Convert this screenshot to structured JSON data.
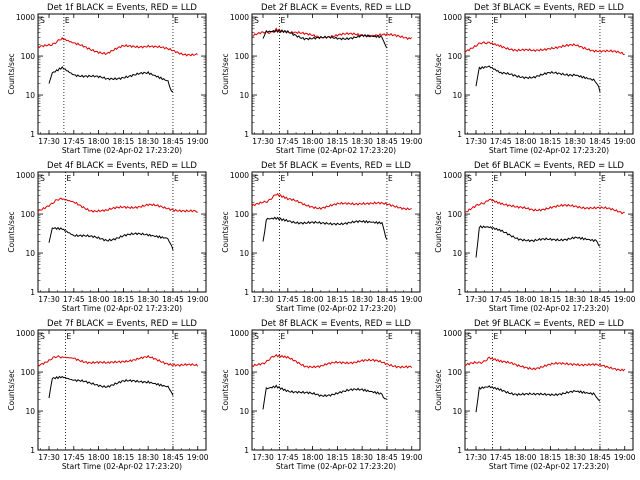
{
  "panels_layout": {
    "rows": 3,
    "cols": 3
  },
  "colors": {
    "events": "#000000",
    "lld": "#dd0000",
    "background": "#ffffff"
  },
  "chart_data": [
    {
      "type": "line",
      "title": "Det 1f BLACK = Events, RED = LLD",
      "xlabel": "Start Time (02-Apr-02 17:23:20)",
      "ylabel": "Counts/sec",
      "x_ticks": [
        "17:30",
        "17:45",
        "18:00",
        "18:15",
        "18:30",
        "18:45",
        "19:00"
      ],
      "y_ticks": [
        "1",
        "10",
        "100",
        "1000"
      ],
      "y_scale": "log",
      "markers": [
        {
          "label": "S",
          "time": "17:24"
        },
        {
          "label": "E",
          "time": "17:39"
        },
        {
          "label": "E",
          "time": "18:45"
        }
      ],
      "series": [
        {
          "color": "#dd0000",
          "x": [
            "17:23",
            "17:30",
            "17:38",
            "17:45",
            "17:55",
            "18:05",
            "18:15",
            "18:30",
            "18:40",
            "18:50",
            "19:00"
          ],
          "y": [
            160,
            200,
            260,
            200,
            150,
            120,
            170,
            190,
            150,
            120,
            110
          ]
        },
        {
          "color": "#000000",
          "x": [
            "17:30",
            "17:32",
            "17:38",
            "17:45",
            "17:55",
            "18:05",
            "18:15",
            "18:30",
            "18:42",
            "18:45"
          ],
          "y": [
            18,
            40,
            55,
            35,
            30,
            25,
            30,
            35,
            22,
            12
          ]
        }
      ]
    },
    {
      "type": "line",
      "title": "Det 2f BLACK = Events, RED = LLD",
      "xlabel": "Start Time (02-Apr-02 17:23:20)",
      "ylabel": "Counts/sec",
      "x_ticks": [
        "17:30",
        "17:45",
        "18:00",
        "18:15",
        "18:30",
        "18:45",
        "19:00"
      ],
      "y_ticks": [
        "1",
        "10",
        "100",
        "1000"
      ],
      "y_scale": "log",
      "markers": [
        {
          "label": "S",
          "time": "17:24"
        },
        {
          "label": "E",
          "time": "17:40"
        },
        {
          "label": "E",
          "time": "18:45"
        }
      ],
      "series": [
        {
          "color": "#dd0000",
          "x": [
            "17:23",
            "17:30",
            "17:38",
            "17:45",
            "17:55",
            "18:05",
            "18:15",
            "18:30",
            "18:40",
            "18:50",
            "19:00"
          ],
          "y": [
            320,
            380,
            480,
            430,
            350,
            320,
            340,
            360,
            350,
            320,
            300
          ]
        },
        {
          "color": "#000000",
          "x": [
            "17:30",
            "17:32",
            "17:38",
            "17:45",
            "17:55",
            "18:05",
            "18:15",
            "18:30",
            "18:42",
            "18:45"
          ],
          "y": [
            300,
            420,
            440,
            400,
            300,
            280,
            290,
            320,
            290,
            160
          ]
        }
      ]
    },
    {
      "type": "line",
      "title": "Det 3f BLACK = Events, RED = LLD",
      "xlabel": "Start Time (02-Apr-02 17:23:20)",
      "ylabel": "Counts/sec",
      "x_ticks": [
        "17:30",
        "17:45",
        "18:00",
        "18:15",
        "18:30",
        "18:45",
        "19:00"
      ],
      "y_ticks": [
        "1",
        "10",
        "100",
        "1000"
      ],
      "y_scale": "log",
      "markers": [
        {
          "label": "S",
          "time": "17:24"
        },
        {
          "label": "E",
          "time": "17:40"
        },
        {
          "label": "E",
          "time": "18:45"
        }
      ],
      "series": [
        {
          "color": "#dd0000",
          "x": [
            "17:23",
            "17:30",
            "17:38",
            "17:45",
            "17:55",
            "18:05",
            "18:15",
            "18:30",
            "18:40",
            "18:50",
            "19:00"
          ],
          "y": [
            140,
            180,
            240,
            190,
            140,
            130,
            170,
            180,
            150,
            130,
            110
          ]
        },
        {
          "color": "#000000",
          "x": [
            "17:30",
            "17:32",
            "17:38",
            "17:45",
            "17:55",
            "18:05",
            "18:15",
            "18:30",
            "18:42",
            "18:45"
          ],
          "y": [
            18,
            45,
            50,
            35,
            30,
            30,
            35,
            35,
            25,
            12
          ]
        }
      ]
    },
    {
      "type": "line",
      "title": "Det 4f BLACK = Events, RED = LLD",
      "xlabel": "Start Time (02-Apr-02 17:23:20)",
      "ylabel": "Counts/sec",
      "x_ticks": [
        "17:30",
        "17:45",
        "18:00",
        "18:15",
        "18:30",
        "18:45",
        "19:00"
      ],
      "y_ticks": [
        "1",
        "10",
        "100",
        "1000"
      ],
      "y_scale": "log",
      "markers": [
        {
          "label": "S",
          "time": "17:24"
        },
        {
          "label": "E",
          "time": "17:40"
        },
        {
          "label": "E",
          "time": "18:45"
        }
      ],
      "series": [
        {
          "color": "#dd0000",
          "x": [
            "17:23",
            "17:30",
            "17:38",
            "17:45",
            "17:55",
            "18:05",
            "18:15",
            "18:30",
            "18:40",
            "18:50",
            "19:00"
          ],
          "y": [
            120,
            180,
            240,
            190,
            130,
            120,
            150,
            170,
            140,
            130,
            110
          ]
        },
        {
          "color": "#000000",
          "x": [
            "17:30",
            "17:32",
            "17:38",
            "17:45",
            "17:55",
            "18:05",
            "18:15",
            "18:30",
            "18:42",
            "18:45"
          ],
          "y": [
            18,
            45,
            42,
            30,
            25,
            22,
            28,
            30,
            25,
            12
          ]
        }
      ]
    },
    {
      "type": "line",
      "title": "Det 5f BLACK = Events, RED = LLD",
      "xlabel": "Start Time (02-Apr-02 17:23:20)",
      "ylabel": "Counts/sec",
      "x_ticks": [
        "17:30",
        "17:45",
        "18:00",
        "18:15",
        "18:30",
        "18:45",
        "19:00"
      ],
      "y_ticks": [
        "1",
        "10",
        "100",
        "1000"
      ],
      "y_scale": "log",
      "markers": [
        {
          "label": "S",
          "time": "17:24"
        },
        {
          "label": "E",
          "time": "17:40"
        },
        {
          "label": "E",
          "time": "18:45"
        }
      ],
      "series": [
        {
          "color": "#dd0000",
          "x": [
            "17:23",
            "17:30",
            "17:38",
            "17:45",
            "17:55",
            "18:05",
            "18:15",
            "18:30",
            "18:40",
            "18:50",
            "19:00"
          ],
          "y": [
            150,
            200,
            300,
            240,
            170,
            150,
            170,
            200,
            180,
            160,
            140
          ]
        },
        {
          "color": "#000000",
          "x": [
            "17:30",
            "17:32",
            "17:38",
            "17:45",
            "17:55",
            "18:05",
            "18:15",
            "18:30",
            "18:42",
            "18:45"
          ],
          "y": [
            20,
            80,
            85,
            70,
            60,
            55,
            60,
            60,
            55,
            22
          ]
        }
      ]
    },
    {
      "type": "line",
      "title": "Det 6f BLACK = Events, RED = LLD",
      "xlabel": "Start Time (02-Apr-02 17:23:20)",
      "ylabel": "Counts/sec",
      "x_ticks": [
        "17:30",
        "17:45",
        "18:00",
        "18:15",
        "18:30",
        "18:45",
        "19:00"
      ],
      "y_ticks": [
        "1",
        "10",
        "100",
        "1000"
      ],
      "y_scale": "log",
      "markers": [
        {
          "label": "S",
          "time": "17:24"
        },
        {
          "label": "E",
          "time": "17:40"
        },
        {
          "label": "E",
          "time": "18:45"
        }
      ],
      "series": [
        {
          "color": "#dd0000",
          "x": [
            "17:23",
            "17:30",
            "17:38",
            "17:45",
            "17:55",
            "18:05",
            "18:15",
            "18:30",
            "18:40",
            "18:50",
            "19:00"
          ],
          "y": [
            110,
            150,
            250,
            200,
            140,
            130,
            150,
            160,
            150,
            130,
            110
          ]
        },
        {
          "color": "#000000",
          "x": [
            "17:30",
            "17:32",
            "17:38",
            "17:45",
            "17:55",
            "18:05",
            "18:15",
            "18:30",
            "18:42",
            "18:45"
          ],
          "y": [
            8,
            45,
            45,
            35,
            25,
            20,
            22,
            25,
            20,
            15
          ]
        }
      ]
    },
    {
      "type": "line",
      "title": "Det 7f BLACK = Events, RED = LLD",
      "xlabel": "Start Time (02-Apr-02 17:23:20)",
      "ylabel": "Counts/sec",
      "x_ticks": [
        "17:30",
        "17:45",
        "18:00",
        "18:15",
        "18:30",
        "18:45",
        "19:00"
      ],
      "y_ticks": [
        "1",
        "10",
        "100",
        "1000"
      ],
      "y_scale": "log",
      "markers": [
        {
          "label": "S",
          "time": "17:24"
        },
        {
          "label": "E",
          "time": "17:40"
        },
        {
          "label": "E",
          "time": "18:45"
        }
      ],
      "series": [
        {
          "color": "#dd0000",
          "x": [
            "17:23",
            "17:30",
            "17:38",
            "17:45",
            "17:55",
            "18:05",
            "18:15",
            "18:30",
            "18:40",
            "18:50",
            "19:00"
          ],
          "y": [
            160,
            200,
            260,
            230,
            180,
            160,
            200,
            230,
            180,
            150,
            140
          ]
        },
        {
          "color": "#000000",
          "x": [
            "17:30",
            "17:32",
            "17:38",
            "17:45",
            "17:55",
            "18:05",
            "18:15",
            "18:30",
            "18:42",
            "18:45"
          ],
          "y": [
            20,
            65,
            70,
            60,
            50,
            45,
            55,
            60,
            45,
            25
          ]
        }
      ]
    },
    {
      "type": "line",
      "title": "Det 8f BLACK = Events, RED = LLD",
      "xlabel": "Start Time (02-Apr-02 17:23:20)",
      "ylabel": "Counts/sec",
      "x_ticks": [
        "17:30",
        "17:45",
        "18:00",
        "18:15",
        "18:30",
        "18:45",
        "19:00"
      ],
      "y_ticks": [
        "1",
        "10",
        "100",
        "1000"
      ],
      "y_scale": "log",
      "markers": [
        {
          "label": "S",
          "time": "17:24"
        },
        {
          "label": "E",
          "time": "17:40"
        },
        {
          "label": "E",
          "time": "18:45"
        }
      ],
      "series": [
        {
          "color": "#dd0000",
          "x": [
            "17:23",
            "17:30",
            "17:38",
            "17:45",
            "17:55",
            "18:05",
            "18:15",
            "18:30",
            "18:40",
            "18:50",
            "19:00"
          ],
          "y": [
            140,
            180,
            250,
            220,
            150,
            140,
            170,
            200,
            180,
            150,
            130
          ]
        },
        {
          "color": "#000000",
          "x": [
            "17:30",
            "17:32",
            "17:38",
            "17:45",
            "17:55",
            "18:05",
            "18:15",
            "18:30",
            "18:42",
            "18:45"
          ],
          "y": [
            10,
            40,
            45,
            35,
            28,
            25,
            30,
            35,
            28,
            20
          ]
        }
      ]
    },
    {
      "type": "line",
      "title": "Det 9f BLACK = Events, RED = LLD",
      "xlabel": "Start Time (02-Apr-02 17:23:20)",
      "ylabel": "Counts/sec",
      "x_ticks": [
        "17:30",
        "17:45",
        "18:00",
        "18:15",
        "18:30",
        "18:45",
        "19:00"
      ],
      "y_ticks": [
        "1",
        "10",
        "100",
        "1000"
      ],
      "y_scale": "log",
      "markers": [
        {
          "label": "S",
          "time": "17:24"
        },
        {
          "label": "E",
          "time": "17:40"
        },
        {
          "label": "E",
          "time": "18:45"
        }
      ],
      "series": [
        {
          "color": "#dd0000",
          "x": [
            "17:23",
            "17:30",
            "17:38",
            "17:45",
            "17:55",
            "18:05",
            "18:15",
            "18:30",
            "18:40",
            "18:50",
            "19:00"
          ],
          "y": [
            140,
            170,
            220,
            190,
            140,
            130,
            150,
            170,
            150,
            130,
            120
          ]
        },
        {
          "color": "#000000",
          "x": [
            "17:30",
            "17:32",
            "17:38",
            "17:45",
            "17:55",
            "18:05",
            "18:15",
            "18:30",
            "18:42",
            "18:45"
          ],
          "y": [
            10,
            40,
            45,
            35,
            28,
            25,
            28,
            30,
            25,
            18
          ]
        }
      ]
    }
  ]
}
